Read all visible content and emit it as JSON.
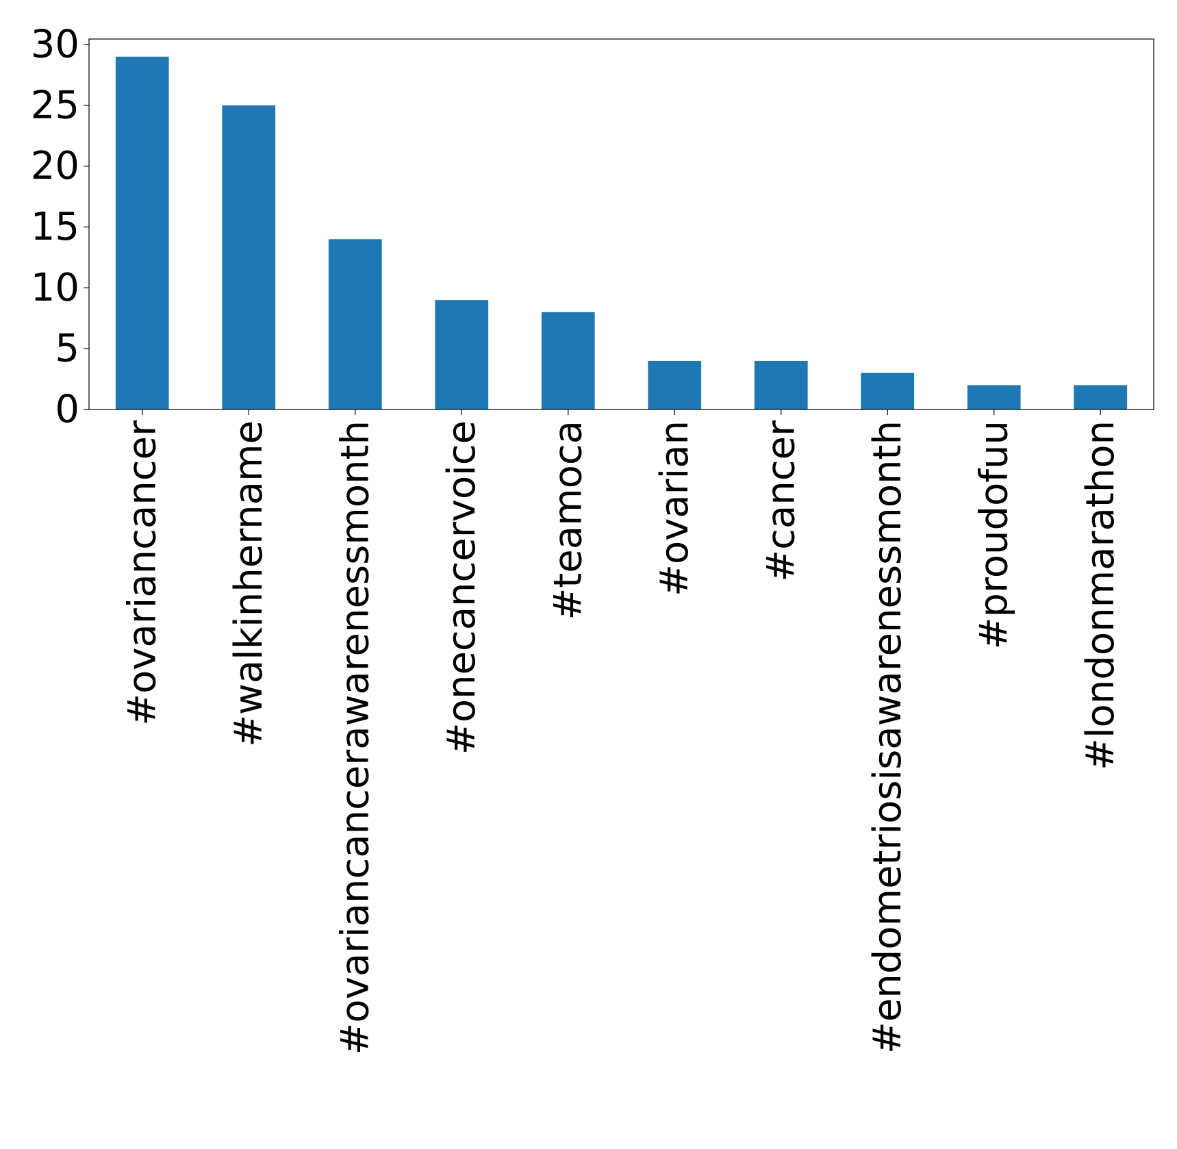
{
  "chart_data": {
    "type": "bar",
    "categories": [
      "#ovariancancer",
      "#walkinhername",
      "#ovariancancerawarenessmonth",
      "#onecancervoice",
      "#teamoca",
      "#ovarian",
      "#cancer",
      "#endometriosisawarenessmonth",
      "#proudofuu",
      "#londonmarathon"
    ],
    "values": [
      29,
      25,
      14,
      9,
      8,
      4,
      4,
      3,
      2,
      2
    ],
    "title": "",
    "xlabel": "",
    "ylabel": "",
    "ylim": [
      0,
      30.45
    ],
    "yticks": [
      0,
      5,
      10,
      15,
      20,
      25,
      30
    ],
    "bar_color": "#1f77b4",
    "grid": false,
    "legend": false,
    "x_tick_rotation": "vertical"
  }
}
